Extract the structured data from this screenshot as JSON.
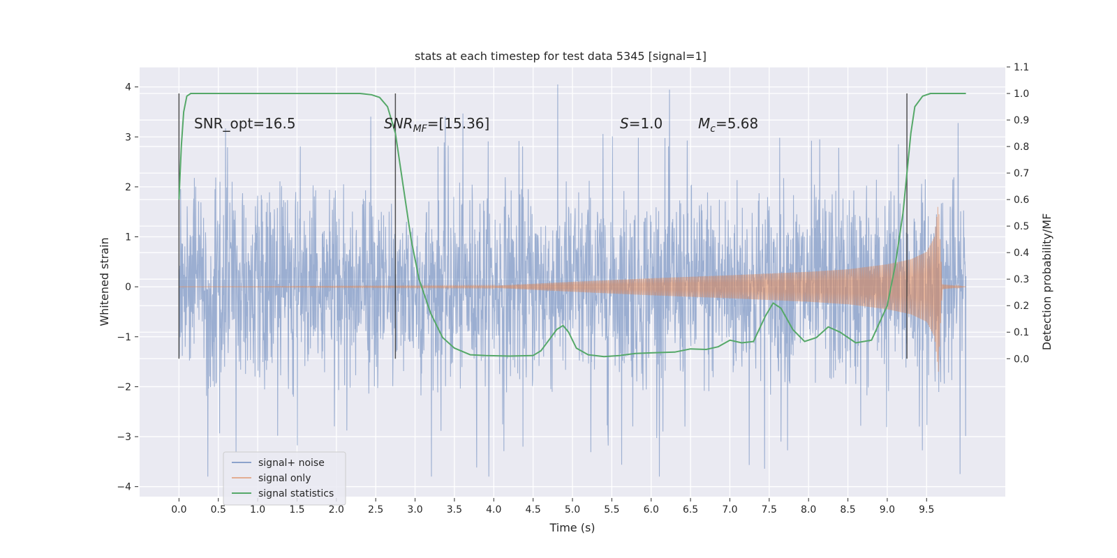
{
  "chart_data": {
    "type": "line",
    "title": "stats at each timestep for test data 5345 [signal=1]",
    "xlabel": "Time (s)",
    "ylabel": "Whitened strain",
    "y2label": "Detection probability/MF",
    "xlim": [
      -0.5,
      10.5
    ],
    "ylim": [
      -4.2,
      4.4
    ],
    "y2lim": [
      -0.52,
      1.1
    ],
    "xticks": [
      0.0,
      0.5,
      1.0,
      1.5,
      2.0,
      2.5,
      3.0,
      3.5,
      4.0,
      4.5,
      5.0,
      5.5,
      6.0,
      6.5,
      7.0,
      7.5,
      8.0,
      8.5,
      9.0,
      9.5
    ],
    "xtick_labels": [
      "0.0",
      "0.5",
      "1.0",
      "1.5",
      "2.0",
      "2.5",
      "3.0",
      "3.5",
      "4.0",
      "4.5",
      "5.0",
      "5.5",
      "6.0",
      "6.5",
      "7.0",
      "7.5",
      "8.0",
      "8.5",
      "9.0",
      "9.5"
    ],
    "yticks": [
      -4,
      -3,
      -2,
      -1,
      0,
      1,
      2,
      3,
      4
    ],
    "ytick_labels": [
      "−4",
      "−3",
      "−2",
      "−1",
      "0",
      "1",
      "2",
      "3",
      "4"
    ],
    "y2ticks": [
      0.0,
      0.1,
      0.2,
      0.3,
      0.4,
      0.5,
      0.6,
      0.7,
      0.8,
      0.9,
      1.0,
      1.1
    ],
    "y2tick_labels": [
      "0.0",
      "0.1",
      "0.2",
      "0.3",
      "0.4",
      "0.5",
      "0.6",
      "0.7",
      "0.8",
      "0.9",
      "1.0",
      "1.1"
    ],
    "grid": true,
    "legend_position": "bottom-left",
    "colors": {
      "noise": "#4c72b0",
      "signal": "#dd8452",
      "stats": "#55a868",
      "markers": "#333333",
      "background": "#eaeaf2"
    },
    "series": [
      {
        "name": "signal+ noise",
        "axis": "left",
        "description_range": [
          -3.8,
          4.05
        ],
        "x_range": [
          0.0,
          10.0
        ]
      },
      {
        "name": "signal only",
        "axis": "left",
        "envelope_x": [
          0.0,
          4.0,
          5.0,
          6.0,
          7.0,
          8.0,
          8.5,
          9.0,
          9.3,
          9.5,
          9.6,
          9.65,
          9.67,
          9.7,
          10.0
        ],
        "envelope_amp": [
          0.0,
          0.02,
          0.1,
          0.17,
          0.23,
          0.3,
          0.35,
          0.45,
          0.55,
          0.7,
          1.0,
          1.7,
          1.0,
          0.05,
          0.0
        ]
      },
      {
        "name": "signal statistics",
        "axis": "right",
        "x": [
          0.0,
          0.03,
          0.06,
          0.1,
          0.15,
          0.25,
          0.4,
          0.8,
          1.5,
          2.0,
          2.3,
          2.45,
          2.55,
          2.65,
          2.75,
          2.85,
          2.95,
          3.05,
          3.2,
          3.35,
          3.5,
          3.7,
          3.9,
          4.2,
          4.5,
          4.6,
          4.7,
          4.8,
          4.88,
          4.95,
          5.05,
          5.2,
          5.4,
          5.6,
          5.8,
          6.0,
          6.3,
          6.5,
          6.7,
          6.85,
          7.0,
          7.15,
          7.3,
          7.45,
          7.55,
          7.65,
          7.8,
          7.95,
          8.1,
          8.25,
          8.4,
          8.6,
          8.8,
          9.0,
          9.1,
          9.2,
          9.3,
          9.35,
          9.45,
          9.55,
          9.7,
          10.0
        ],
        "y": [
          0.6,
          0.8,
          0.93,
          0.99,
          1.0,
          1.0,
          1.0,
          1.0,
          1.0,
          1.0,
          1.0,
          0.995,
          0.985,
          0.95,
          0.85,
          0.65,
          0.45,
          0.3,
          0.17,
          0.08,
          0.04,
          0.015,
          0.012,
          0.01,
          0.012,
          0.03,
          0.07,
          0.11,
          0.125,
          0.1,
          0.04,
          0.015,
          0.008,
          0.012,
          0.02,
          0.022,
          0.025,
          0.037,
          0.035,
          0.045,
          0.07,
          0.06,
          0.065,
          0.16,
          0.21,
          0.19,
          0.11,
          0.065,
          0.08,
          0.12,
          0.1,
          0.06,
          0.07,
          0.2,
          0.35,
          0.55,
          0.85,
          0.95,
          0.99,
          1.0,
          1.0,
          1.0
        ]
      }
    ],
    "vertical_markers": [
      0.0,
      2.75,
      9.25
    ],
    "annotations": [
      {
        "text": "SNR_opt=16.5"
      },
      {
        "main": "SNR",
        "sub": "MF",
        "rest": "=[15.36]"
      },
      {
        "main": "S",
        "rest": "=1.0"
      },
      {
        "main": "M",
        "sub": "c",
        "rest": "=5.68"
      }
    ]
  }
}
